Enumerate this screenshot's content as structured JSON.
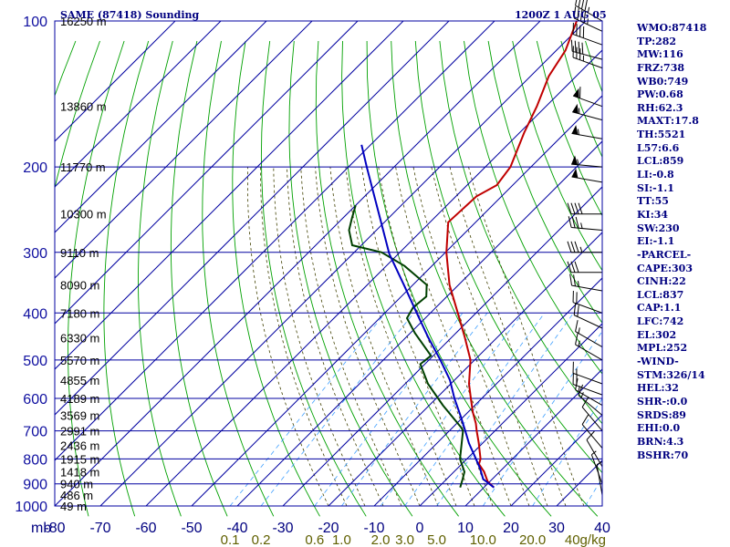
{
  "header": {
    "title": "SAME (87418) Sounding",
    "time": "1200Z  1 AUG 05"
  },
  "colors": {
    "frame": "#0000a0",
    "dry_adiabat": "#00a000",
    "moist_adiabat": "#404000",
    "mixing_ratio": "#40a0ff",
    "temperature": "#c00000",
    "dewpoint": "#004000",
    "parcel": "#0000c0",
    "index_text": "#000080"
  },
  "indices": [
    "WMO:87418",
    "TP:282",
    "MW:116",
    "FRZ:738",
    "WB0:749",
    "PW:0.68",
    "RH:62.3",
    "MAXT:17.8",
    "TH:5521",
    "L57:6.6",
    "LCL:859",
    "LI:-0.8",
    "SI:-1.1",
    "TT:55",
    "KI:34",
    "SW:230",
    "EI:-1.1",
    "-PARCEL-",
    "CAPE:303",
    "CINH:22",
    "LCL:837",
    "CAP:1.1",
    "LFC:742",
    "EL:302",
    "MPL:252",
    "-WIND-",
    "STM:326/14",
    "HEL:32",
    "SHR-:0.0",
    "SRDS:89",
    "EHI:0.0",
    "BRN:4.3",
    "BSHR:70"
  ],
  "chart_data": {
    "type": "line",
    "title": "SAME (87418) Sounding",
    "subtitle": "1200Z  1 AUG 05",
    "xlabel": "",
    "ylabel": "mb",
    "y_scale": "log",
    "ylim": [
      1000,
      100
    ],
    "xlim": [
      -80,
      40
    ],
    "grid": true,
    "pressure_ticks": [
      "100",
      "200",
      "300",
      "400",
      "500",
      "600",
      "700",
      "800",
      "900",
      "1000"
    ],
    "pressure_unit": "mb",
    "height_ticks": [
      {
        "p": 100,
        "label": "16250 m"
      },
      {
        "p": 150,
        "label": "13860 m"
      },
      {
        "p": 200,
        "label": "11770 m"
      },
      {
        "p": 250,
        "label": "10300 m"
      },
      {
        "p": 300,
        "label": "9110 m"
      },
      {
        "p": 350,
        "label": "8090 m"
      },
      {
        "p": 400,
        "label": "7180 m"
      },
      {
        "p": 450,
        "label": "6330 m"
      },
      {
        "p": 500,
        "label": "5570 m"
      },
      {
        "p": 550,
        "label": "4855 m"
      },
      {
        "p": 600,
        "label": "4189 m"
      },
      {
        "p": 650,
        "label": "3569 m"
      },
      {
        "p": 700,
        "label": "2991 m"
      },
      {
        "p": 750,
        "label": "2436 m"
      },
      {
        "p": 800,
        "label": "1915 m"
      },
      {
        "p": 850,
        "label": "1418 m"
      },
      {
        "p": 900,
        "label": "940 m"
      },
      {
        "p": 950,
        "label": "486 m"
      },
      {
        "p": 1000,
        "label": "49 m"
      }
    ],
    "temperature_ticks": [
      "-80",
      "-70",
      "-60",
      "-50",
      "-40",
      "-30",
      "-20",
      "-10",
      "0",
      "10",
      "20",
      "30",
      "40"
    ],
    "mixing_ratio_ticks": [
      {
        "w": 0.1,
        "label": "0.1"
      },
      {
        "w": 0.2,
        "label": "0.2"
      },
      {
        "w": 0.6,
        "label": "0.6"
      },
      {
        "w": 1.0,
        "label": "1.0"
      },
      {
        "w": 2.0,
        "label": "2.0"
      },
      {
        "w": 3.0,
        "label": "3.0"
      },
      {
        "w": 5.0,
        "label": "5.0"
      },
      {
        "w": 10.0,
        "label": "10.0"
      },
      {
        "w": 20.0,
        "label": "20.0"
      },
      {
        "w": 40.0,
        "label": "40g/kg"
      }
    ],
    "series": [
      {
        "key": "temperature",
        "points": [
          {
            "p": 916,
            "t": 12.2
          },
          {
            "p": 890,
            "t": 9.5
          },
          {
            "p": 850,
            "t": 6.6
          },
          {
            "p": 820,
            "t": 3.8
          },
          {
            "p": 800,
            "t": 3.0
          },
          {
            "p": 740,
            "t": -1.0
          },
          {
            "p": 700,
            "t": -4.0
          },
          {
            "p": 676,
            "t": -5.8
          },
          {
            "p": 640,
            "t": -9.0
          },
          {
            "p": 600,
            "t": -12.4
          },
          {
            "p": 560,
            "t": -16.0
          },
          {
            "p": 500,
            "t": -20.9
          },
          {
            "p": 450,
            "t": -27.0
          },
          {
            "p": 400,
            "t": -34.0
          },
          {
            "p": 350,
            "t": -42.0
          },
          {
            "p": 300,
            "t": -49.8
          },
          {
            "p": 260,
            "t": -56.0
          },
          {
            "p": 230,
            "t": -55.5
          },
          {
            "p": 218,
            "t": -53.5
          },
          {
            "p": 200,
            "t": -54.5
          },
          {
            "p": 170,
            "t": -59.0
          },
          {
            "p": 150,
            "t": -62.0
          },
          {
            "p": 130,
            "t": -66.0
          },
          {
            "p": 115,
            "t": -68.0
          },
          {
            "p": 100,
            "t": -72.0
          }
        ]
      },
      {
        "key": "dewpoint",
        "points": [
          {
            "p": 916,
            "t": 4.8
          },
          {
            "p": 880,
            "t": 3.5
          },
          {
            "p": 850,
            "t": 2.3
          },
          {
            "p": 800,
            "t": -1.5
          },
          {
            "p": 700,
            "t": -7.0
          },
          {
            "p": 690,
            "t": -8.0
          },
          {
            "p": 620,
            "t": -17.0
          },
          {
            "p": 560,
            "t": -25.0
          },
          {
            "p": 510,
            "t": -31.0
          },
          {
            "p": 490,
            "t": -30.5
          },
          {
            "p": 440,
            "t": -39.0
          },
          {
            "p": 410,
            "t": -44.0
          },
          {
            "p": 390,
            "t": -45.0
          },
          {
            "p": 370,
            "t": -44.5
          },
          {
            "p": 350,
            "t": -47.0
          },
          {
            "p": 320,
            "t": -56.0
          },
          {
            "p": 300,
            "t": -64.0
          },
          {
            "p": 290,
            "t": -72.0
          },
          {
            "p": 270,
            "t": -76.0
          },
          {
            "p": 255,
            "t": -78.0
          },
          {
            "p": 240,
            "t": -80.0
          }
        ]
      },
      {
        "key": "parcel",
        "points": [
          {
            "p": 916,
            "t": 12.2
          },
          {
            "p": 880,
            "t": 8.0
          },
          {
            "p": 837,
            "t": 5.0
          },
          {
            "p": 800,
            "t": 2.0
          },
          {
            "p": 742,
            "t": -3.0
          },
          {
            "p": 700,
            "t": -6.5
          },
          {
            "p": 650,
            "t": -11.0
          },
          {
            "p": 600,
            "t": -16.0
          },
          {
            "p": 550,
            "t": -21.0
          },
          {
            "p": 500,
            "t": -27.5
          },
          {
            "p": 450,
            "t": -35.0
          },
          {
            "p": 400,
            "t": -43.0
          },
          {
            "p": 350,
            "t": -52.0
          },
          {
            "p": 302,
            "t": -62.0
          },
          {
            "p": 250,
            "t": -73.0
          },
          {
            "p": 200,
            "t": -86.0
          },
          {
            "p": 180,
            "t": -92.0
          }
        ]
      }
    ],
    "wind_barbs": [
      {
        "p": 100,
        "dir": 300,
        "kt": 45
      },
      {
        "p": 105,
        "dir": 295,
        "kt": 45
      },
      {
        "p": 112,
        "dir": 290,
        "kt": 40
      },
      {
        "p": 120,
        "dir": 285,
        "kt": 40
      },
      {
        "p": 125,
        "dir": 290,
        "kt": 35
      },
      {
        "p": 150,
        "dir": 290,
        "kt": 60
      },
      {
        "p": 160,
        "dir": 285,
        "kt": 55
      },
      {
        "p": 175,
        "dir": 280,
        "kt": 55
      },
      {
        "p": 200,
        "dir": 275,
        "kt": 55
      },
      {
        "p": 215,
        "dir": 280,
        "kt": 50
      },
      {
        "p": 250,
        "dir": 270,
        "kt": 40
      },
      {
        "p": 270,
        "dir": 275,
        "kt": 35
      },
      {
        "p": 300,
        "dir": 270,
        "kt": 35
      },
      {
        "p": 330,
        "dir": 270,
        "kt": 30
      },
      {
        "p": 360,
        "dir": 280,
        "kt": 25
      },
      {
        "p": 400,
        "dir": 290,
        "kt": 20
      },
      {
        "p": 430,
        "dir": 295,
        "kt": 20
      },
      {
        "p": 470,
        "dir": 300,
        "kt": 15
      },
      {
        "p": 500,
        "dir": 300,
        "kt": 15
      },
      {
        "p": 560,
        "dir": 290,
        "kt": 15
      },
      {
        "p": 590,
        "dir": 290,
        "kt": 20
      },
      {
        "p": 620,
        "dir": 300,
        "kt": 15
      },
      {
        "p": 650,
        "dir": 310,
        "kt": 15
      },
      {
        "p": 700,
        "dir": 320,
        "kt": 10
      },
      {
        "p": 760,
        "dir": 320,
        "kt": 10
      },
      {
        "p": 830,
        "dir": 330,
        "kt": 10
      },
      {
        "p": 900,
        "dir": 340,
        "kt": 5
      },
      {
        "p": 950,
        "dir": 350,
        "kt": 5
      }
    ]
  }
}
